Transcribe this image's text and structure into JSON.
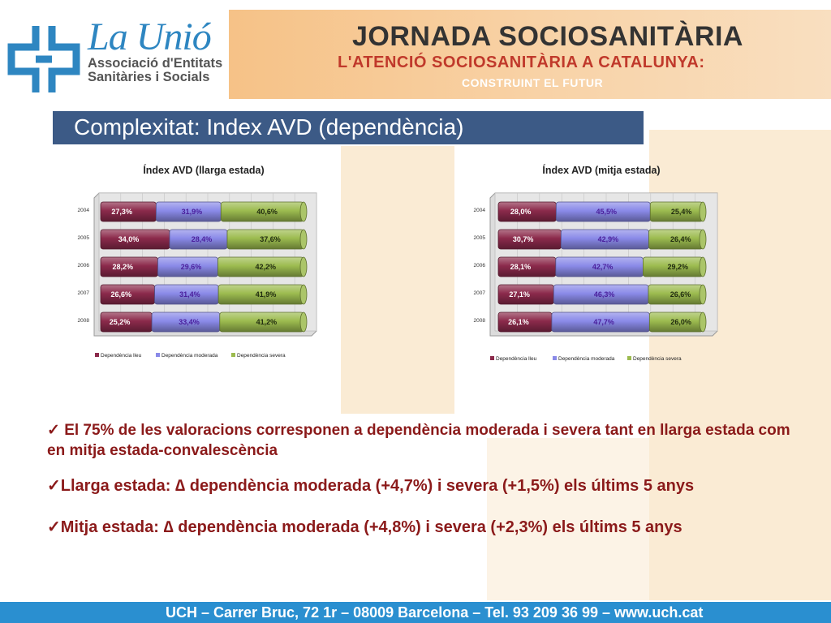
{
  "header": {
    "brand_name": "La Unió",
    "brand_line1": "Associació d'Entitats",
    "brand_line2": "Sanitàries i Socials",
    "banner_title": "JORNADA SOCIOSANITÀRIA",
    "banner_subtitle": "L'ATENCIÓ SOCIOSANITÀRIA A CATALUNYA:",
    "banner_subtitle2": "CONSTRUINT EL FUTUR"
  },
  "section_title": "Complexitat: Index AVD (dependència)",
  "colors": {
    "lleu": "#8b2a4b",
    "moderada": "#8a8ae8",
    "severa": "#9cbb4f",
    "accent_blue": "#3c5a86",
    "bullet_red": "#8b1a1a",
    "footer_blue": "#2a8fd0"
  },
  "chart_data": [
    {
      "type": "bar",
      "stacked": "100%",
      "orientation": "horizontal",
      "title": "Índex AVD (llarga estada)",
      "categories": [
        "2004",
        "2005",
        "2006",
        "2007",
        "2008"
      ],
      "series": [
        {
          "name": "Dependència lleu",
          "values": [
            27.3,
            34.0,
            28.2,
            26.6,
            25.2
          ],
          "labels": [
            "27,3%",
            "34,0%",
            "28,2%",
            "26,6%",
            "25,2%"
          ]
        },
        {
          "name": "Dependència moderada",
          "values": [
            31.9,
            28.4,
            29.6,
            31.4,
            33.4
          ],
          "labels": [
            "31,9%",
            "28,4%",
            "29,6%",
            "31,4%",
            "33,4%"
          ]
        },
        {
          "name": "Dependència severa",
          "values": [
            40.6,
            37.6,
            42.2,
            41.9,
            41.2
          ],
          "labels": [
            "40,6%",
            "37,6%",
            "42,2%",
            "41,9%",
            "41,2%"
          ]
        }
      ],
      "legend": "bottom",
      "grid": true
    },
    {
      "type": "bar",
      "stacked": "100%",
      "orientation": "horizontal",
      "title": "Índex AVD (mitja estada)",
      "categories": [
        "2004",
        "2005",
        "2006",
        "2007",
        "2008"
      ],
      "series": [
        {
          "name": "Dependència lleu",
          "values": [
            28.0,
            30.7,
            28.1,
            27.1,
            26.1
          ],
          "labels": [
            "28,0%",
            "30,7%",
            "28,1%",
            "27,1%",
            "26,1%"
          ]
        },
        {
          "name": "Dependència moderada",
          "values": [
            45.5,
            42.9,
            42.7,
            46.3,
            47.7
          ],
          "labels": [
            "45,5%",
            "42,9%",
            "42,7%",
            "46,3%",
            "47,7%"
          ]
        },
        {
          "name": "Dependència severa",
          "values": [
            25.4,
            26.4,
            29.2,
            26.6,
            26.0
          ],
          "labels": [
            "25,4%",
            "26,4%",
            "29,2%",
            "26,6%",
            "26,0%"
          ]
        }
      ],
      "legend": "bottom",
      "grid": true
    }
  ],
  "bullets": [
    {
      "check": "✓",
      "text": "El 75% de les valoracions corresponen a dependència moderada i severa tant en llarga estada com en mitja estada-convalescència"
    },
    {
      "check": "✓",
      "text": "Llarga estada: ∆ dependència moderada (+4,7%) i severa (+1,5%) els últims 5 anys"
    },
    {
      "check": "✓",
      "text": "Mitja estada: ∆ dependència moderada (+4,8%) i severa (+2,3%) els últims 5 anys"
    }
  ],
  "footer": "UCH – Carrer Bruc, 72 1r – 08009 Barcelona – Tel. 93 209 36 99 – www.uch.cat"
}
